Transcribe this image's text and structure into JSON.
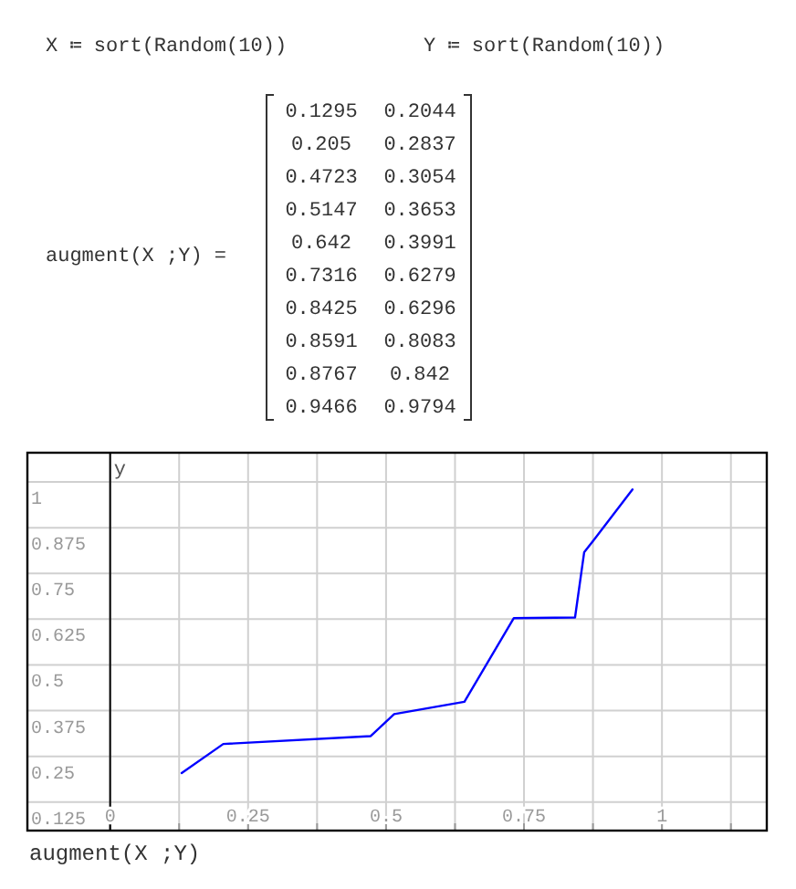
{
  "chart_data": [
    {
      "type": "other",
      "annotations": [
        "X ≔ sort(Random(10))",
        "Y ≔ sort(Random(10))",
        "augment(X ;Y) =",
        "0.1295",
        "0.2044",
        "0.205",
        "0.2837",
        "0.4723",
        "0.3054",
        "0.5147",
        "0.3653",
        "0.642",
        "0.3991",
        "0.7316",
        "0.6279",
        "0.8425",
        "0.6296",
        "0.8591",
        "0.8083",
        "0.8767",
        "0.842",
        "0.9466",
        "0.9794"
      ]
    },
    {
      "type": "line",
      "xlabel": "augment(X ;Y)",
      "ylabel": "y",
      "x": [
        0.1295,
        0.205,
        0.4723,
        0.5147,
        0.642,
        0.7316,
        0.8425,
        0.8591,
        0.8767,
        0.9466
      ],
      "series": [
        {
          "color": "#0000ff",
          "values": [
            0.2044,
            0.2837,
            0.3054,
            0.3653,
            0.3991,
            0.6279,
            0.6296,
            0.8083,
            0.842,
            0.9794
          ]
        }
      ],
      "xlim": [
        -0.15,
        1.19
      ],
      "ylim": [
        0.047,
        1.08
      ],
      "xticks": [
        0,
        {
          "value": 0.125,
          "label": null
        },
        0.25,
        {
          "value": 0.375,
          "label": null
        },
        0.5,
        {
          "value": 0.625,
          "label": null
        },
        0.75,
        {
          "value": 0.875,
          "label": null
        },
        1,
        {
          "value": 1.125,
          "label": null
        }
      ],
      "yticks": [
        0.125,
        0.25,
        0.375,
        0.5,
        0.625,
        0.75,
        0.875,
        1
      ],
      "grid": true
    }
  ]
}
